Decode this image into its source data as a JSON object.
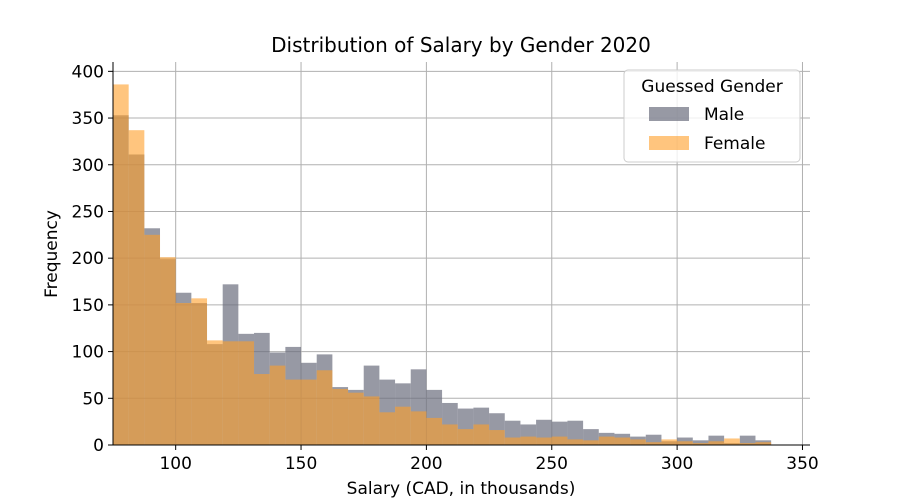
{
  "chart_data": {
    "type": "histogram",
    "title": "Distribution of Salary by Gender 2020",
    "xlabel": "Salary (CAD, in thousands)",
    "ylabel": "Frequency",
    "xlim": [
      75,
      353
    ],
    "ylim": [
      0,
      410
    ],
    "xticks": [
      100,
      150,
      200,
      250,
      300,
      350
    ],
    "yticks": [
      0,
      50,
      100,
      150,
      200,
      250,
      300,
      350,
      400
    ],
    "grid": true,
    "bin_start": 75,
    "bin_width": 6.25,
    "legend": {
      "title": "Guessed Gender",
      "placement": "top-right"
    },
    "series": [
      {
        "name": "Male",
        "color": "#6b6e7e",
        "values": [
          353,
          311,
          232,
          199,
          163,
          152,
          108,
          172,
          119,
          120,
          99,
          105,
          88,
          97,
          62,
          59,
          85,
          70,
          66,
          81,
          59,
          45,
          39,
          40,
          34,
          26,
          22,
          27,
          25,
          26,
          17,
          13,
          12,
          9,
          11,
          4,
          8,
          5,
          10,
          2,
          10,
          5
        ]
      },
      {
        "name": "Female",
        "color": "#ff9f28",
        "values": [
          386,
          337,
          225,
          201,
          152,
          157,
          112,
          111,
          111,
          76,
          85,
          70,
          70,
          80,
          60,
          56,
          52,
          35,
          41,
          36,
          29,
          22,
          17,
          22,
          16,
          8,
          9,
          8,
          9,
          6,
          5,
          9,
          8,
          6,
          3,
          6,
          4,
          2,
          4,
          7,
          2,
          3
        ]
      }
    ]
  }
}
